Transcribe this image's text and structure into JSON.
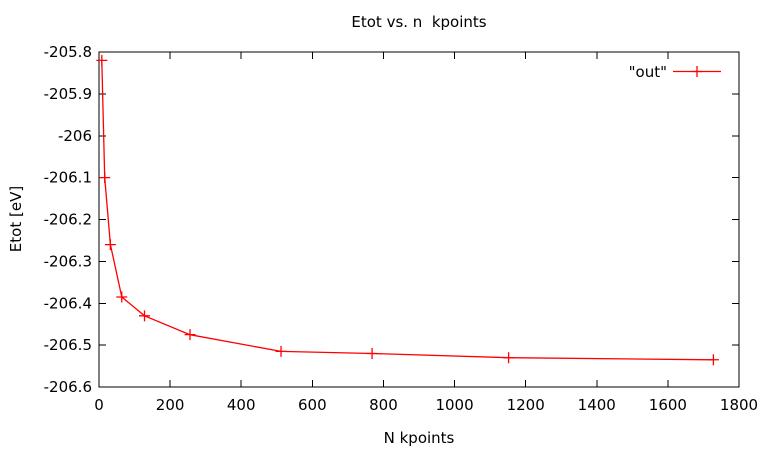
{
  "chart_data": {
    "type": "line",
    "title": "Etot vs. n  kpoints",
    "xlabel": "N kpoints",
    "ylabel": "Etot [eV]",
    "legend": {
      "label": "\"out\"",
      "position": "top-right-inside"
    },
    "grid": false,
    "background_color": "#ffffff",
    "axis_color": "#000000",
    "series_color": "#ff0000",
    "marker": "plus",
    "xlim": [
      0,
      1800
    ],
    "ylim": [
      -206.6,
      -205.8
    ],
    "xtick_labels": [
      "0",
      "200",
      "400",
      "600",
      "800",
      "1000",
      "1200",
      "1400",
      "1600",
      "1800"
    ],
    "ytick_labels": [
      "-205.8",
      "-205.9",
      "-206",
      "-206.1",
      "-206.2",
      "-206.3",
      "-206.4",
      "-206.5",
      "-206.6"
    ],
    "series": [
      {
        "name": "\"out\"",
        "points": [
          {
            "x": 8,
            "y": -205.82
          },
          {
            "x": 16,
            "y": -206.1
          },
          {
            "x": 32,
            "y": -206.26
          },
          {
            "x": 64,
            "y": -206.385
          },
          {
            "x": 128,
            "y": -206.43
          },
          {
            "x": 256,
            "y": -206.475
          },
          {
            "x": 512,
            "y": -206.515
          },
          {
            "x": 768,
            "y": -206.52
          },
          {
            "x": 1152,
            "y": -206.53
          },
          {
            "x": 1728,
            "y": -206.535
          }
        ]
      }
    ]
  }
}
